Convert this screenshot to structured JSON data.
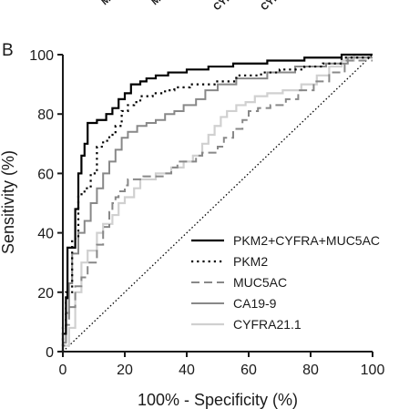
{
  "panel_label": "B",
  "clipped_top_labels": [
    "M",
    "M",
    "CYF",
    "CYF"
  ],
  "chart_data": {
    "type": "line",
    "xlabel": "100% - Specificity (%)",
    "ylabel": "Sensitivity (%)",
    "xlim": [
      0,
      100
    ],
    "ylim": [
      0,
      100
    ],
    "x_ticks": [
      0,
      20,
      40,
      60,
      80,
      100
    ],
    "y_ticks": [
      0,
      20,
      40,
      60,
      80,
      100
    ],
    "x_tick_labels": [
      "0",
      "20",
      "40",
      "60",
      "80",
      "100"
    ],
    "y_tick_labels": [
      "0",
      "20",
      "40",
      "60",
      "80",
      "100"
    ],
    "grid": false,
    "legend_position": "lower-right",
    "reference_line": {
      "style": "dotted",
      "color": "#000000",
      "points": [
        [
          0,
          0
        ],
        [
          100,
          100
        ]
      ]
    },
    "series": [
      {
        "name": "PKM2+CYFRA+MUC5AC",
        "color": "#000000",
        "dash": "solid",
        "width": 2.2,
        "points": [
          [
            0,
            0
          ],
          [
            0,
            6
          ],
          [
            1,
            6
          ],
          [
            1,
            18
          ],
          [
            1.5,
            18
          ],
          [
            1.5,
            35
          ],
          [
            3,
            35
          ],
          [
            3,
            35
          ],
          [
            4,
            35
          ],
          [
            4,
            48
          ],
          [
            5,
            48
          ],
          [
            5,
            60
          ],
          [
            6,
            60
          ],
          [
            6,
            66
          ],
          [
            7,
            66
          ],
          [
            7,
            70
          ],
          [
            8,
            70
          ],
          [
            8,
            77
          ],
          [
            11,
            77
          ],
          [
            11,
            78
          ],
          [
            14,
            78
          ],
          [
            14,
            80
          ],
          [
            16,
            80
          ],
          [
            16,
            82
          ],
          [
            18,
            82
          ],
          [
            18,
            85
          ],
          [
            20,
            85
          ],
          [
            20,
            87
          ],
          [
            22,
            87
          ],
          [
            22,
            90
          ],
          [
            25,
            90
          ],
          [
            25,
            91
          ],
          [
            27,
            91
          ],
          [
            27,
            92
          ],
          [
            30,
            92
          ],
          [
            30,
            93
          ],
          [
            34,
            93
          ],
          [
            34,
            94
          ],
          [
            40,
            94
          ],
          [
            40,
            95
          ],
          [
            47,
            95
          ],
          [
            47,
            96
          ],
          [
            55,
            96
          ],
          [
            55,
            97
          ],
          [
            66,
            97
          ],
          [
            66,
            98
          ],
          [
            78,
            98
          ],
          [
            78,
            99
          ],
          [
            90,
            99
          ],
          [
            90,
            100
          ],
          [
            100,
            100
          ]
        ]
      },
      {
        "name": "PKM2",
        "color": "#000000",
        "dash": "dotted",
        "width": 2.2,
        "points": [
          [
            0,
            0
          ],
          [
            0,
            8
          ],
          [
            1,
            8
          ],
          [
            1,
            20
          ],
          [
            3,
            20
          ],
          [
            3,
            38
          ],
          [
            5,
            38
          ],
          [
            5,
            53
          ],
          [
            7,
            53
          ],
          [
            7,
            55
          ],
          [
            9,
            55
          ],
          [
            9,
            60
          ],
          [
            11,
            60
          ],
          [
            11,
            69
          ],
          [
            13,
            69
          ],
          [
            13,
            71
          ],
          [
            15,
            71
          ],
          [
            15,
            73
          ],
          [
            17,
            73
          ],
          [
            17,
            76
          ],
          [
            19,
            76
          ],
          [
            19,
            81
          ],
          [
            21,
            81
          ],
          [
            21,
            83
          ],
          [
            23,
            83
          ],
          [
            23,
            84
          ],
          [
            25,
            84
          ],
          [
            25,
            86
          ],
          [
            29,
            86
          ],
          [
            29,
            87
          ],
          [
            33,
            87
          ],
          [
            33,
            88
          ],
          [
            36,
            88
          ],
          [
            36,
            89
          ],
          [
            41,
            89
          ],
          [
            41,
            90
          ],
          [
            49,
            90
          ],
          [
            49,
            91
          ],
          [
            56,
            91
          ],
          [
            56,
            93
          ],
          [
            64,
            93
          ],
          [
            64,
            94
          ],
          [
            70,
            94
          ],
          [
            70,
            95
          ],
          [
            78,
            95
          ],
          [
            78,
            96
          ],
          [
            84,
            96
          ],
          [
            84,
            97
          ],
          [
            90,
            97
          ],
          [
            90,
            99
          ],
          [
            100,
            99
          ]
        ]
      },
      {
        "name": "MUC5AC",
        "color": "#888888",
        "dash": "dashed",
        "width": 2.0,
        "points": [
          [
            0,
            0
          ],
          [
            0,
            2
          ],
          [
            1,
            2
          ],
          [
            1,
            9
          ],
          [
            2,
            9
          ],
          [
            2,
            15
          ],
          [
            4,
            15
          ],
          [
            4,
            22
          ],
          [
            6,
            22
          ],
          [
            6,
            25
          ],
          [
            8,
            25
          ],
          [
            8,
            30
          ],
          [
            11,
            30
          ],
          [
            11,
            36
          ],
          [
            13,
            36
          ],
          [
            13,
            42
          ],
          [
            15,
            42
          ],
          [
            15,
            47
          ],
          [
            16,
            47
          ],
          [
            16,
            50
          ],
          [
            17,
            50
          ],
          [
            17,
            52
          ],
          [
            18,
            52
          ],
          [
            18,
            54
          ],
          [
            20,
            54
          ],
          [
            20,
            56
          ],
          [
            21,
            56
          ],
          [
            21,
            58
          ],
          [
            26,
            58
          ],
          [
            26,
            59
          ],
          [
            33,
            59
          ],
          [
            33,
            60
          ],
          [
            35,
            60
          ],
          [
            35,
            62
          ],
          [
            37,
            62
          ],
          [
            37,
            64
          ],
          [
            43,
            64
          ],
          [
            43,
            66
          ],
          [
            45,
            66
          ],
          [
            45,
            67
          ],
          [
            50,
            67
          ],
          [
            50,
            69
          ],
          [
            52,
            69
          ],
          [
            52,
            72
          ],
          [
            55,
            72
          ],
          [
            55,
            75
          ],
          [
            58,
            75
          ],
          [
            58,
            78
          ],
          [
            60,
            78
          ],
          [
            60,
            81
          ],
          [
            63,
            81
          ],
          [
            63,
            82
          ],
          [
            67,
            82
          ],
          [
            67,
            83
          ],
          [
            72,
            83
          ],
          [
            72,
            85
          ],
          [
            76,
            85
          ],
          [
            76,
            88
          ],
          [
            81,
            88
          ],
          [
            81,
            91
          ],
          [
            86,
            91
          ],
          [
            86,
            94
          ],
          [
            91,
            94
          ],
          [
            91,
            98
          ],
          [
            100,
            98
          ]
        ]
      },
      {
        "name": "CA19-9",
        "color": "#888888",
        "dash": "solid",
        "width": 2.0,
        "points": [
          [
            0,
            0
          ],
          [
            0,
            3
          ],
          [
            1,
            3
          ],
          [
            1,
            13
          ],
          [
            2,
            13
          ],
          [
            2,
            23
          ],
          [
            3,
            23
          ],
          [
            3,
            33
          ],
          [
            5,
            33
          ],
          [
            5,
            40
          ],
          [
            7,
            40
          ],
          [
            7,
            44
          ],
          [
            9,
            44
          ],
          [
            9,
            50
          ],
          [
            11,
            50
          ],
          [
            11,
            55
          ],
          [
            13,
            55
          ],
          [
            13,
            60
          ],
          [
            15,
            60
          ],
          [
            15,
            64
          ],
          [
            17,
            64
          ],
          [
            17,
            68
          ],
          [
            19,
            68
          ],
          [
            19,
            72
          ],
          [
            21,
            72
          ],
          [
            21,
            74
          ],
          [
            24,
            74
          ],
          [
            24,
            76
          ],
          [
            27,
            76
          ],
          [
            27,
            77
          ],
          [
            30,
            77
          ],
          [
            30,
            78
          ],
          [
            33,
            78
          ],
          [
            33,
            80
          ],
          [
            36,
            80
          ],
          [
            36,
            81
          ],
          [
            39,
            81
          ],
          [
            39,
            83
          ],
          [
            43,
            83
          ],
          [
            43,
            85
          ],
          [
            46,
            85
          ],
          [
            46,
            88
          ],
          [
            50,
            88
          ],
          [
            50,
            90
          ],
          [
            56,
            90
          ],
          [
            56,
            92
          ],
          [
            66,
            92
          ],
          [
            66,
            94
          ],
          [
            75,
            94
          ],
          [
            75,
            96
          ],
          [
            85,
            96
          ],
          [
            85,
            97
          ],
          [
            92,
            97
          ],
          [
            92,
            99
          ],
          [
            100,
            99
          ]
        ]
      },
      {
        "name": "CYFRA21.1",
        "color": "#d0d0d0",
        "dash": "solid",
        "width": 2.2,
        "points": [
          [
            0,
            0
          ],
          [
            0,
            2
          ],
          [
            2,
            2
          ],
          [
            2,
            8
          ],
          [
            4,
            8
          ],
          [
            4,
            20
          ],
          [
            6,
            20
          ],
          [
            6,
            30
          ],
          [
            8,
            30
          ],
          [
            8,
            34
          ],
          [
            11,
            34
          ],
          [
            11,
            40
          ],
          [
            13,
            40
          ],
          [
            13,
            43
          ],
          [
            16,
            43
          ],
          [
            16,
            46
          ],
          [
            18,
            46
          ],
          [
            18,
            50
          ],
          [
            20,
            50
          ],
          [
            20,
            52
          ],
          [
            23,
            52
          ],
          [
            23,
            55
          ],
          [
            25,
            55
          ],
          [
            25,
            58
          ],
          [
            30,
            58
          ],
          [
            30,
            60
          ],
          [
            35,
            60
          ],
          [
            35,
            62
          ],
          [
            39,
            62
          ],
          [
            39,
            64
          ],
          [
            42,
            64
          ],
          [
            42,
            66
          ],
          [
            45,
            66
          ],
          [
            45,
            70
          ],
          [
            47,
            70
          ],
          [
            47,
            73
          ],
          [
            49,
            73
          ],
          [
            49,
            76
          ],
          [
            51,
            76
          ],
          [
            51,
            79
          ],
          [
            53,
            79
          ],
          [
            53,
            81
          ],
          [
            56,
            81
          ],
          [
            56,
            83
          ],
          [
            59,
            83
          ],
          [
            59,
            84
          ],
          [
            62,
            84
          ],
          [
            62,
            86
          ],
          [
            66,
            86
          ],
          [
            66,
            87
          ],
          [
            71,
            87
          ],
          [
            71,
            88
          ],
          [
            77,
            88
          ],
          [
            77,
            90
          ],
          [
            82,
            90
          ],
          [
            82,
            93
          ],
          [
            86,
            93
          ],
          [
            86,
            96
          ],
          [
            90,
            96
          ],
          [
            90,
            98
          ],
          [
            94,
            98
          ],
          [
            94,
            100
          ],
          [
            100,
            100
          ]
        ]
      }
    ]
  }
}
